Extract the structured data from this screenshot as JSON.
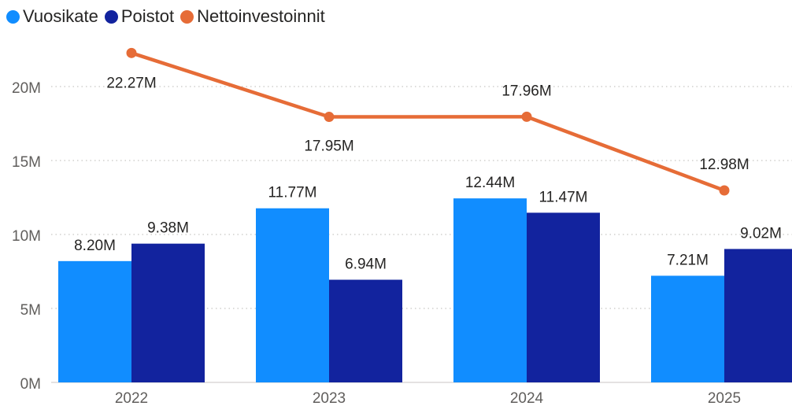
{
  "chart_data": {
    "type": "bar",
    "categories": [
      "2022",
      "2023",
      "2024",
      "2025"
    ],
    "series": [
      {
        "name": "Vuosikate",
        "type": "bar",
        "color": "#118DFF",
        "values": [
          8.2,
          11.77,
          12.44,
          7.21
        ],
        "labels": [
          "8.20M",
          "11.77M",
          "12.44M",
          "7.21M"
        ]
      },
      {
        "name": "Poistot",
        "type": "bar",
        "color": "#12239E",
        "values": [
          9.38,
          6.94,
          11.47,
          9.02
        ],
        "labels": [
          "9.38M",
          "6.94M",
          "11.47M",
          "9.02M"
        ]
      },
      {
        "name": "Nettoinvestoinnit",
        "type": "line",
        "color": "#E66C37",
        "values": [
          22.27,
          17.95,
          17.96,
          12.98
        ],
        "labels": [
          "22.27M",
          "17.95M",
          "17.96M",
          "12.98M"
        ]
      }
    ],
    "y_ticks": [
      0,
      5,
      10,
      15,
      20
    ],
    "y_tick_labels": [
      "0M",
      "5M",
      "10M",
      "15M",
      "20M"
    ],
    "ylim": [
      0,
      25
    ],
    "grid": true,
    "legend_position": "top-left",
    "title": "",
    "xlabel": "",
    "ylabel": ""
  }
}
